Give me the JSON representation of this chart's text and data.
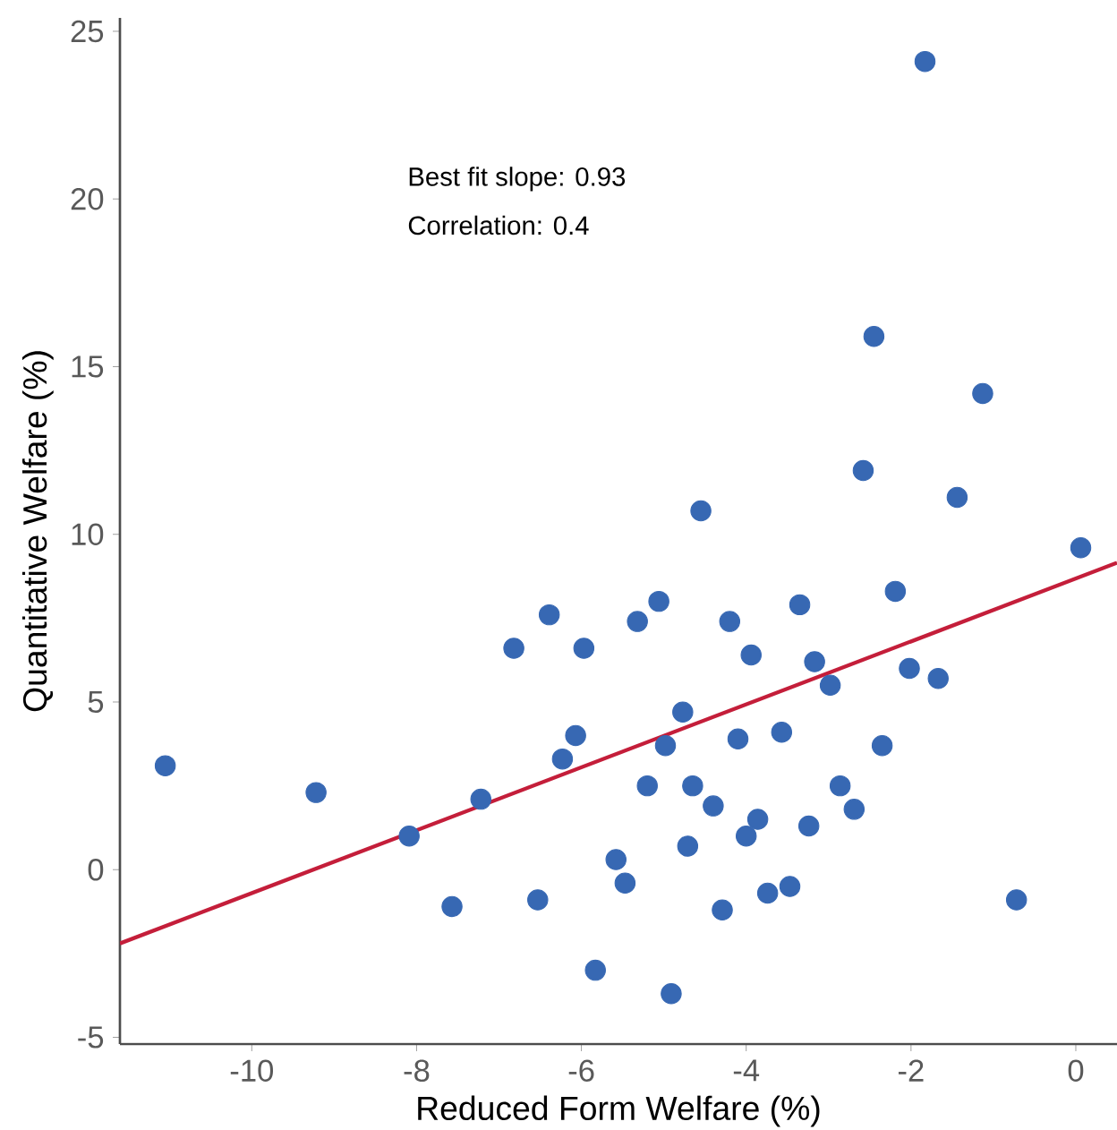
{
  "chart_data": {
    "type": "scatter",
    "xlabel": "Reduced Form Welfare (%)",
    "ylabel": "Quantitative Welfare (%)",
    "annotations": [
      "Best fit slope: 0.93",
      "Correlation: 0.4"
    ],
    "xlim": [
      -11.6,
      0.5
    ],
    "ylim": [
      -5.2,
      25.4
    ],
    "xticks": [
      -10,
      -8,
      -6,
      -4,
      -2,
      0
    ],
    "yticks": [
      -5,
      0,
      5,
      10,
      15,
      20,
      25
    ],
    "grid": false,
    "series": [
      {
        "color": "#3768b3",
        "marker": "circle",
        "x": [
          -11.05,
          -9.22,
          -8.09,
          -7.22,
          -7.57,
          -6.53,
          -6.39,
          -6.82,
          -5.97,
          -6.07,
          -6.23,
          -5.83,
          0.06,
          -2.19,
          -5.06,
          -5.32,
          -4.2,
          -3.35,
          -3.94,
          -3.17,
          -2.98,
          -2.02,
          -1.67,
          -4.77,
          -4.98,
          -4.1,
          -3.57,
          -2.35,
          -5.2,
          -4.65,
          -4.4,
          -2.86,
          -2.69,
          -3.86,
          -3.24,
          -4.0,
          -4.71,
          -5.58,
          -5.47,
          -3.74,
          -3.47,
          -4.29,
          -0.72,
          -4.91,
          -1.83,
          -2.45,
          -1.13,
          -2.58,
          -1.44,
          -4.55
        ],
        "values": [
          3.1,
          2.3,
          1.0,
          2.1,
          -1.1,
          -0.9,
          7.6,
          6.6,
          6.6,
          4.0,
          3.3,
          -3.0,
          9.6,
          8.3,
          8.0,
          7.4,
          7.4,
          7.9,
          6.4,
          6.2,
          5.5,
          6.0,
          5.7,
          4.7,
          3.7,
          3.9,
          4.1,
          3.7,
          2.5,
          2.5,
          1.9,
          2.5,
          1.8,
          1.5,
          1.3,
          1.0,
          0.7,
          0.3,
          -0.4,
          -0.7,
          -0.5,
          -1.2,
          -0.9,
          -3.7,
          24.1,
          15.9,
          14.2,
          11.9,
          11.1,
          10.7
        ]
      },
      {
        "type": "line",
        "color": "#c41e3a",
        "line_style": "solid",
        "x": [
          -11.6,
          0.5
        ],
        "values": [
          -2.2,
          9.15
        ]
      }
    ]
  }
}
